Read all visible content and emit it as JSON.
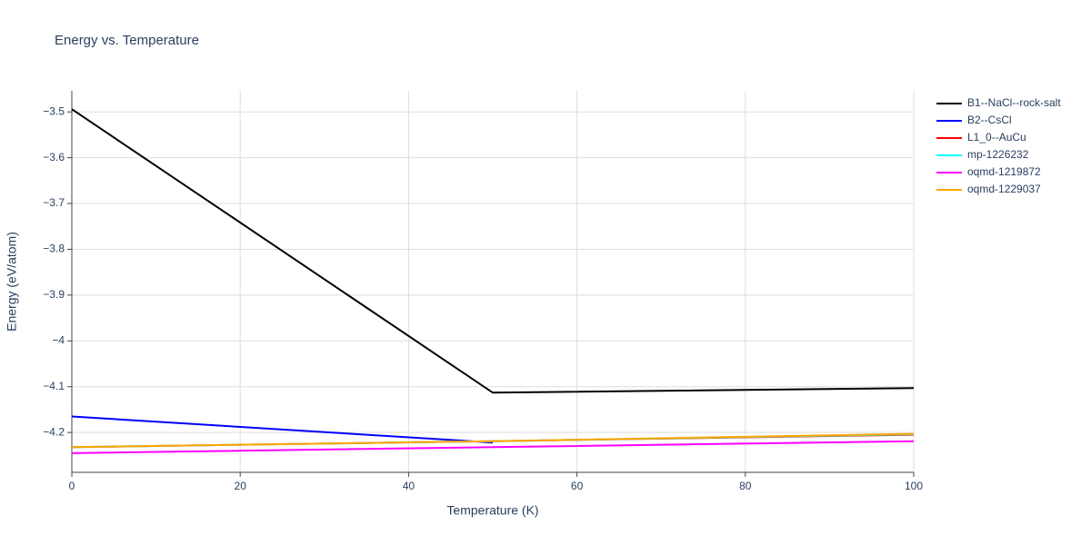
{
  "chart_data": {
    "type": "line",
    "title": "Energy vs. Temperature",
    "x_label": "Temperature (K)",
    "y_label": "Energy (eV/atom)",
    "xlim": [
      0,
      100
    ],
    "xticks": [
      0,
      20,
      40,
      60,
      80,
      100
    ],
    "ylim": [
      -4.287,
      -3.454
    ],
    "yticks": [
      {
        "value": -3.5,
        "label": "−3.5"
      },
      {
        "value": -3.6,
        "label": "−3.6"
      },
      {
        "value": -3.7,
        "label": "−3.7"
      },
      {
        "value": -3.8,
        "label": "−3.8"
      },
      {
        "value": -3.9,
        "label": "−3.9"
      },
      {
        "value": -4,
        "label": "−4"
      },
      {
        "value": -4.1,
        "label": "−4.1"
      },
      {
        "value": -4.2,
        "label": "−4.2"
      }
    ],
    "grid": true,
    "legend": "right",
    "series": [
      {
        "name": "B1--NaCl--rock-salt",
        "color": "#000000",
        "x": [
          0,
          50,
          100
        ],
        "values": [
          -3.494,
          -4.113,
          -4.103
        ]
      },
      {
        "name": "B2--CsCl",
        "color": "#0000ff",
        "x": [
          0,
          50
        ],
        "values": [
          -4.165,
          -4.222
        ]
      },
      {
        "name": "L1_0--AuCu",
        "color": "#ff0000",
        "x": [
          0,
          50,
          100
        ],
        "values": [
          -4.232,
          -4.219,
          -4.205
        ]
      },
      {
        "name": "mp-1226232",
        "color": "#00ffff",
        "x": [
          0,
          50,
          100
        ],
        "values": [
          -4.232,
          -4.219,
          -4.204
        ]
      },
      {
        "name": "oqmd-1219872",
        "color": "#ff00ff",
        "x": [
          0,
          50,
          100
        ],
        "values": [
          -4.245,
          -4.232,
          -4.219
        ]
      },
      {
        "name": "oqmd-1229037",
        "color": "#ffa500",
        "x": [
          0,
          50,
          100
        ],
        "values": [
          -4.232,
          -4.219,
          -4.203
        ]
      }
    ]
  }
}
